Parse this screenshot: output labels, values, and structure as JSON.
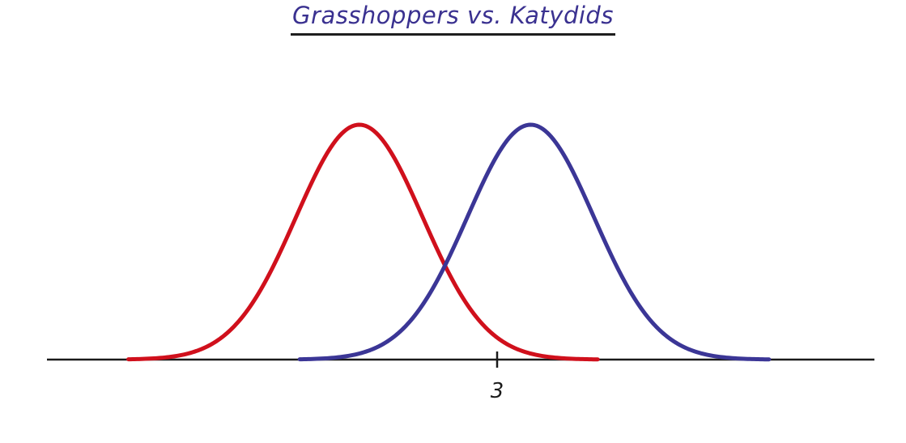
{
  "chart_data": {
    "type": "line",
    "title": "Grasshoppers vs. Katydids",
    "xlabel": "",
    "ylabel": "",
    "xlim": [
      -2.5,
      6.5
    ],
    "ylim": [
      0,
      1
    ],
    "grid": false,
    "x_ticks": [
      {
        "value": 3,
        "label": "3"
      }
    ],
    "series": [
      {
        "color": "#d0101c",
        "curve": "normal",
        "mean": 1.15,
        "sd": 0.85,
        "x_start": -1.95,
        "x_end": 4.35
      },
      {
        "color": "#3b3696",
        "curve": "normal",
        "mean": 3.45,
        "sd": 0.85,
        "x_start": 0.35,
        "x_end": 6.65
      }
    ]
  },
  "colors": {
    "title": "#3a3190",
    "axis": "#1a1a1a",
    "tick_label": "#1a1a1a",
    "background": "#ffffff"
  }
}
